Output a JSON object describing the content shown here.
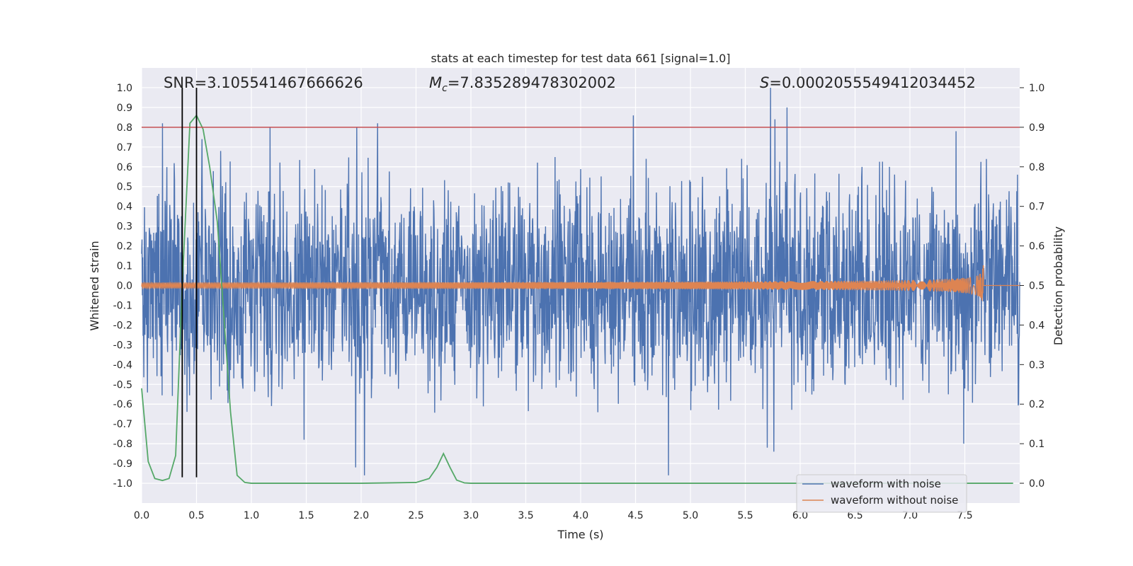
{
  "chart_data": {
    "type": "line",
    "title": "stats at each timestep for test data 661 [signal=1.0]",
    "xlabel": "Time (s)",
    "ylabel_left": "Whitened strain",
    "ylabel_right": "Detection probability",
    "xlim": [
      0.0,
      8.0
    ],
    "ylim_left": [
      -1.1,
      1.1
    ],
    "ylim_right": [
      -0.05,
      1.05
    ],
    "xticks": [
      "0.0",
      "0.5",
      "1.0",
      "1.5",
      "2.0",
      "2.5",
      "3.0",
      "3.5",
      "4.0",
      "4.5",
      "5.0",
      "5.5",
      "6.0",
      "6.5",
      "7.0",
      "7.5"
    ],
    "yticks_left": [
      "-1.0",
      "-0.9",
      "-0.8",
      "-0.7",
      "-0.6",
      "-0.5",
      "-0.4",
      "-0.3",
      "-0.2",
      "-0.1",
      "0.0",
      "0.1",
      "0.2",
      "0.3",
      "0.4",
      "0.5",
      "0.6",
      "0.7",
      "0.8",
      "0.9",
      "1.0"
    ],
    "yticks_right": [
      "0.0",
      "0.1",
      "0.2",
      "0.3",
      "0.4",
      "0.5",
      "0.6",
      "0.7",
      "0.8",
      "0.9",
      "1.0"
    ],
    "grid": true,
    "legend_position": "lower-right",
    "annotations": {
      "snr": "SNR=3.105541467666626",
      "mc_symbol": "M",
      "mc_sub": "c",
      "mc_value": "=7.835289478302002",
      "s_symbol": "S",
      "s_value": "=0.0002055549412034452"
    },
    "threshold": {
      "name": "threshold",
      "value": 0.9,
      "axis": "right",
      "color": "#c44e52"
    },
    "vertical_markers": {
      "x": [
        0.37,
        0.5
      ],
      "ymin": -0.97,
      "ymax": 1.0,
      "color": "#000000"
    },
    "series": [
      {
        "name": "waveform with noise",
        "color": "#4c72b0",
        "axis": "left",
        "kind": "noise",
        "x_range": [
          0.0,
          8.0
        ],
        "typical_envelope": 0.42,
        "peaks": [
          {
            "x": 0.19,
            "y": 0.82
          },
          {
            "x": 0.55,
            "y": 0.74
          },
          {
            "x": 0.72,
            "y": 0.68
          },
          {
            "x": 1.17,
            "y": 0.8
          },
          {
            "x": 1.96,
            "y": 0.8
          },
          {
            "x": 2.15,
            "y": 0.82
          },
          {
            "x": 4.48,
            "y": 0.86
          },
          {
            "x": 5.73,
            "y": 1.0
          },
          {
            "x": 5.88,
            "y": 0.9
          },
          {
            "x": 5.77,
            "y": 0.84
          },
          {
            "x": 7.42,
            "y": 0.78
          }
        ],
        "troughs": [
          {
            "x": 1.95,
            "y": -0.92
          },
          {
            "x": 2.03,
            "y": -0.96
          },
          {
            "x": 4.8,
            "y": -0.96
          },
          {
            "x": 5.76,
            "y": -0.84
          },
          {
            "x": 5.7,
            "y": -0.82
          },
          {
            "x": 7.49,
            "y": -0.8
          },
          {
            "x": 1.48,
            "y": -0.78
          }
        ]
      },
      {
        "name": "waveform without noise",
        "color": "#dd8452",
        "axis": "left",
        "kind": "chirp",
        "x_range": [
          0.0,
          7.67
        ],
        "merger_x": 7.67,
        "peak_amplitude": 0.1
      },
      {
        "name": "detection probability",
        "color": "#55a868",
        "axis": "right",
        "kind": "line",
        "x": [
          0.0,
          0.06,
          0.12,
          0.19,
          0.25,
          0.31,
          0.37,
          0.44,
          0.5,
          0.56,
          0.62,
          0.69,
          0.75,
          0.81,
          0.87,
          0.94,
          1.0,
          1.5,
          2.0,
          2.5,
          2.62,
          2.69,
          2.75,
          2.81,
          2.87,
          2.94,
          3.0,
          5.0,
          7.0,
          7.94
        ],
        "y": [
          0.24,
          0.055,
          0.012,
          0.007,
          0.012,
          0.07,
          0.5,
          0.91,
          0.93,
          0.895,
          0.8,
          0.66,
          0.42,
          0.18,
          0.02,
          0.002,
          0.0,
          0.0,
          0.0,
          0.002,
          0.012,
          0.04,
          0.075,
          0.04,
          0.008,
          0.001,
          0.0,
          0.0,
          0.0,
          0.0
        ]
      }
    ]
  }
}
